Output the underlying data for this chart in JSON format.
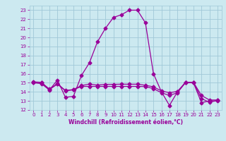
{
  "title": "",
  "xlabel": "Windchill (Refroidissement éolien,°C)",
  "background_color": "#cce9f0",
  "grid_color": "#a0c8d8",
  "line_color": "#990099",
  "xlim": [
    -0.5,
    23.5
  ],
  "ylim": [
    12,
    23.5
  ],
  "xticks": [
    0,
    1,
    2,
    3,
    4,
    5,
    6,
    7,
    8,
    9,
    10,
    11,
    12,
    13,
    14,
    15,
    16,
    17,
    18,
    19,
    20,
    21,
    22,
    23
  ],
  "yticks": [
    12,
    13,
    14,
    15,
    16,
    17,
    18,
    19,
    20,
    21,
    22,
    23
  ],
  "series1_x": [
    0,
    1,
    2,
    3,
    4,
    5,
    6,
    7,
    8,
    9,
    10,
    11,
    12,
    13,
    14,
    15,
    16,
    17,
    18,
    19,
    20,
    21,
    22,
    23
  ],
  "series1_y": [
    15.0,
    14.9,
    14.2,
    15.3,
    13.4,
    13.5,
    15.8,
    17.2,
    19.5,
    21.0,
    22.2,
    22.5,
    23.0,
    23.0,
    21.6,
    16.0,
    14.0,
    12.5,
    14.0,
    15.0,
    15.0,
    12.8,
    13.0,
    13.0
  ],
  "series2_x": [
    0,
    1,
    2,
    3,
    4,
    5,
    6,
    7,
    8,
    9,
    10,
    11,
    12,
    13,
    14,
    15,
    16,
    17,
    18,
    19,
    20,
    21,
    22,
    23
  ],
  "series2_y": [
    15.1,
    15.05,
    14.3,
    14.9,
    14.15,
    14.25,
    14.7,
    14.85,
    14.75,
    14.82,
    14.83,
    14.84,
    14.84,
    14.84,
    14.73,
    14.55,
    14.1,
    13.9,
    14.05,
    15.05,
    15.05,
    13.6,
    13.1,
    13.1
  ],
  "series3_x": [
    0,
    1,
    2,
    3,
    4,
    5,
    6,
    7,
    8,
    9,
    10,
    11,
    12,
    13,
    14,
    15,
    16,
    17,
    18,
    19,
    20,
    21,
    22,
    23
  ],
  "series3_y": [
    15.05,
    15.02,
    14.25,
    14.85,
    14.12,
    14.22,
    14.6,
    14.6,
    14.6,
    14.6,
    14.6,
    14.6,
    14.6,
    14.6,
    14.58,
    14.35,
    13.9,
    13.6,
    13.9,
    15.02,
    15.02,
    13.25,
    12.85,
    13.05
  ]
}
